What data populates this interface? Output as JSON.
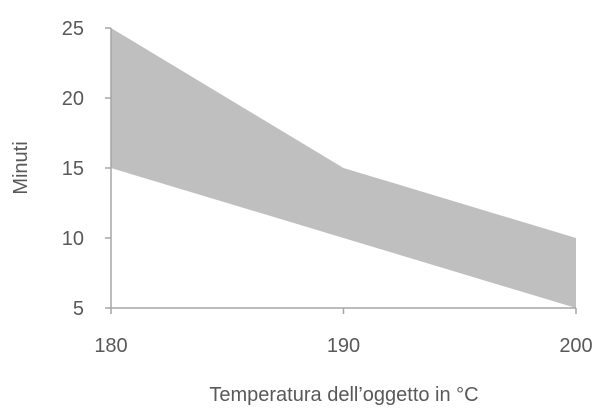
{
  "chart_data": {
    "type": "area",
    "title": "",
    "xlabel": "Temperatura dell’oggetto in °C",
    "ylabel": "Minuti",
    "x": [
      180,
      190,
      200
    ],
    "series": [
      {
        "name": "",
        "role": "lower",
        "values": [
          15,
          10,
          5
        ]
      },
      {
        "name": "",
        "role": "upper",
        "values": [
          25,
          15,
          10
        ]
      }
    ],
    "xlim": [
      180,
      200
    ],
    "ylim": [
      5,
      25
    ],
    "xticks": [
      180,
      190,
      200
    ],
    "yticks": [
      5,
      10,
      15,
      20,
      25
    ],
    "grid": false,
    "legend": "none",
    "fill_color": "#bfbfbf",
    "axis_color": "#a6a6a6",
    "text_color": "#595959"
  }
}
